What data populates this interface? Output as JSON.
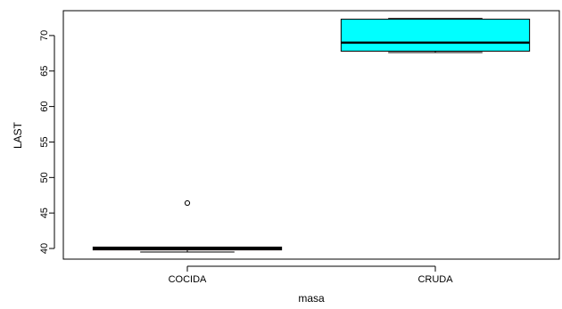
{
  "chart_data": {
    "type": "boxplot",
    "xlabel": "masa",
    "ylabel": "LAST",
    "ylim": [
      38.5,
      73.5
    ],
    "y_ticks": [
      40,
      45,
      50,
      55,
      60,
      65,
      70
    ],
    "grid": false,
    "categories": [
      "COCIDA",
      "CRUDA"
    ],
    "boxes": [
      {
        "category": "COCIDA",
        "whisker_low": 39.5,
        "q1": 39.8,
        "median": 40.0,
        "q3": 40.2,
        "whisker_high": 40.2,
        "outliers": [
          46.4
        ],
        "fill": "#ff0000"
      },
      {
        "category": "CRUDA",
        "whisker_low": 67.6,
        "q1": 67.8,
        "median": 69.0,
        "q3": 72.3,
        "whisker_high": 72.4,
        "outliers": [],
        "fill": "#00ffff"
      }
    ]
  }
}
